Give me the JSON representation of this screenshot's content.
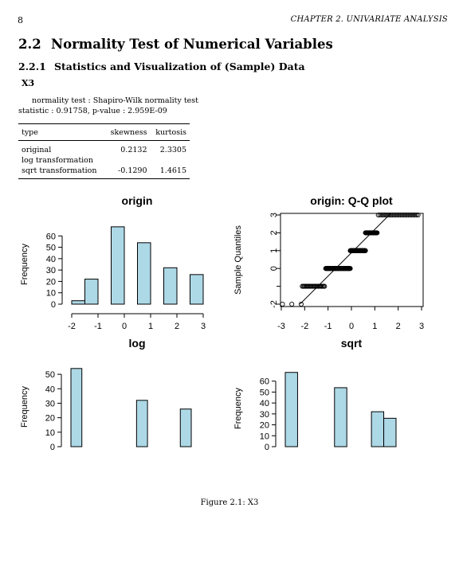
{
  "header": {
    "page_number": "8",
    "running_head": "CHAPTER 2.   UNIVARIATE ANALYSIS"
  },
  "section": {
    "number": "2.2",
    "title": "Normality Test of Numerical Variables"
  },
  "subsection": {
    "number": "2.2.1",
    "title": "Statistics and Visualization of (Sample) Data"
  },
  "variable": "X3",
  "normality": {
    "test_line": "normality test : Shapiro-Wilk normality test",
    "stat_line": "statistic : 0.91758, p-value : 2.959E-09"
  },
  "table": {
    "headers": [
      "type",
      "skewness",
      "kurtosis"
    ],
    "rows": [
      [
        "original",
        "0.2132",
        "2.3305"
      ],
      [
        "log transformation",
        "",
        ""
      ],
      [
        "sqrt transformation",
        "-0.1290",
        "1.4615"
      ]
    ]
  },
  "colors": {
    "bar_fill": "#add8e6",
    "stroke": "#000000"
  },
  "chart_data": [
    {
      "type": "bar",
      "title": "origin",
      "xlabel": "",
      "ylabel": "Frequency",
      "bins": [
        [
          -2,
          -1.5
        ],
        [
          -1.5,
          -1
        ],
        [
          -0.5,
          0
        ],
        [
          0.5,
          1
        ],
        [
          1.5,
          2
        ],
        [
          2.5,
          3
        ]
      ],
      "values": [
        3,
        22,
        68,
        54,
        32,
        26
      ],
      "xlim": [
        -2,
        3
      ],
      "ylim": [
        0,
        70
      ],
      "xticks": [
        "-2",
        "-1",
        "0",
        "1",
        "2",
        "3"
      ],
      "yticks": [
        "0",
        "10",
        "20",
        "30",
        "40",
        "50",
        "60"
      ]
    },
    {
      "type": "scatter",
      "title": "origin: Q-Q plot",
      "xlabel": "",
      "ylabel": "Sample Quantiles",
      "xlim": [
        -3,
        3
      ],
      "ylim": [
        -2,
        3
      ],
      "xticks": [
        "-3",
        "-2",
        "-1",
        "0",
        "1",
        "2",
        "3"
      ],
      "yticks": [
        "-2",
        "",
        "0",
        "1",
        "2",
        "3"
      ],
      "groups": [
        {
          "y": -2,
          "x_from": -2.95,
          "x_to": -2.15,
          "count": 3
        },
        {
          "y": -1,
          "x_from": -2.1,
          "x_to": -1.15,
          "count": 22
        },
        {
          "y": 0,
          "x_from": -1.1,
          "x_to": -0.05,
          "count": 68
        },
        {
          "y": 1,
          "x_from": -0.05,
          "x_to": 0.6,
          "count": 54
        },
        {
          "y": 2,
          "x_from": 0.6,
          "x_to": 1.1,
          "count": 32
        },
        {
          "y": 3,
          "x_from": 1.15,
          "x_to": 2.85,
          "count": 26
        }
      ],
      "reference_line": [
        [
          -2.2,
          -2
        ],
        [
          2,
          3.5
        ]
      ]
    },
    {
      "type": "bar",
      "title": "log",
      "xlabel": "",
      "ylabel": "Frequency",
      "bins": [
        [
          0,
          0.1
        ],
        [
          0.6,
          0.7
        ],
        [
          1.0,
          1.1
        ]
      ],
      "values": [
        54,
        32,
        26
      ],
      "xlim": [
        0,
        1.1
      ],
      "ylim": [
        0,
        55
      ],
      "xticks": [
        "0.0",
        "0.2",
        "0.4",
        "0.6",
        "0.8",
        "1.0"
      ],
      "yticks": [
        "0",
        "10",
        "20",
        "30",
        "40",
        "50"
      ]
    },
    {
      "type": "bar",
      "title": "sqrt",
      "xlabel": "",
      "ylabel": "Frequency",
      "bins": [
        [
          0,
          0.2
        ],
        [
          0.8,
          1.0
        ],
        [
          1.4,
          1.6
        ],
        [
          1.6,
          1.8
        ]
      ],
      "values": [
        68,
        54,
        32,
        26
      ],
      "xlim": [
        0,
        1.8
      ],
      "ylim": [
        0,
        70
      ],
      "xticks": [
        "0.0",
        "0.5",
        "1.0",
        "1.5"
      ],
      "yticks": [
        "0",
        "10",
        "20",
        "30",
        "40",
        "50",
        "60"
      ]
    }
  ],
  "caption": "Figure 2.1: X3"
}
